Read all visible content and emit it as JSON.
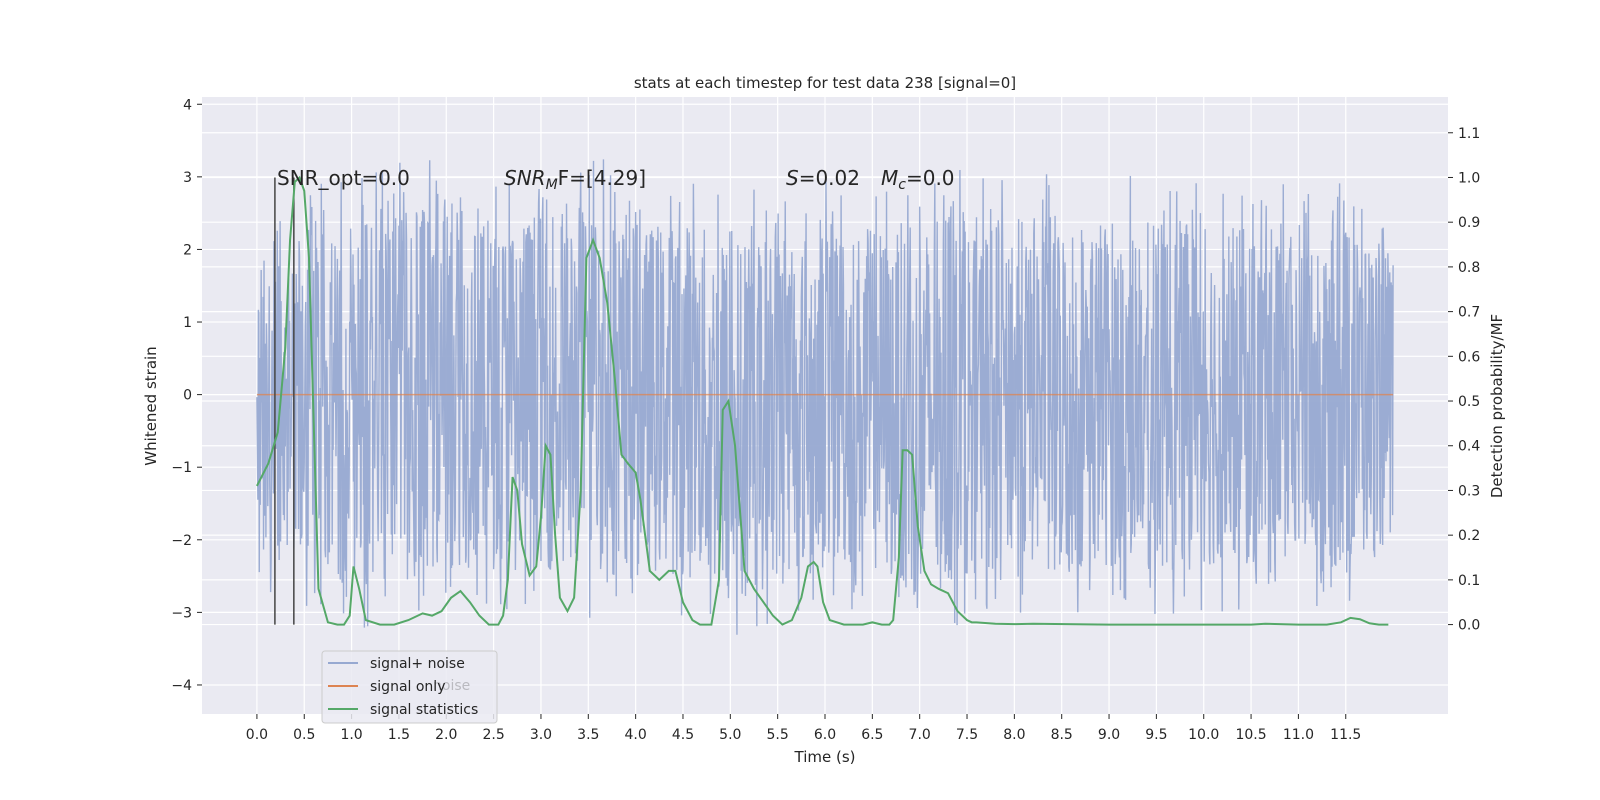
{
  "chart_data": {
    "type": "line",
    "title": "stats at each timestep for test data 238 [signal=0]",
    "xlabel": "Time (s)",
    "ylabel_left": "Whitened strain",
    "ylabel_right": "Detection probability/MF",
    "xlim": [
      -0.58,
      12.58
    ],
    "ylim_left": [
      -4.4,
      4.1
    ],
    "ylim_right": [
      -0.2,
      1.18
    ],
    "x_ticks": [
      "0.0",
      "0.5",
      "1.0",
      "1.5",
      "2.0",
      "2.5",
      "3.0",
      "3.5",
      "4.0",
      "4.5",
      "5.0",
      "5.5",
      "6.0",
      "6.5",
      "7.0",
      "7.5",
      "8.0",
      "8.5",
      "9.0",
      "9.5",
      "10.0",
      "10.5",
      "11.0",
      "11.5"
    ],
    "y_ticks_left": [
      "-4",
      "-3",
      "-2",
      "-1",
      "0",
      "1",
      "2",
      "3",
      "4"
    ],
    "y_ticks_right": [
      "0.0",
      "0.1",
      "0.2",
      "0.3",
      "0.4",
      "0.5",
      "0.6",
      "0.7",
      "0.8",
      "0.9",
      "1.0",
      "1.1"
    ],
    "grid": true,
    "legend_position": "lower-left",
    "series": [
      {
        "name": "signal+ noise",
        "color": "#97a9d1",
        "x_range": [
          0.0,
          12.0
        ],
        "baseline_band": [
          -0.3,
          1.0
        ],
        "envelope": {
          "x": [
            0.0,
            0.5,
            1.0,
            1.5,
            2.0,
            2.5,
            3.0,
            3.5,
            4.0,
            4.5,
            5.0,
            5.5,
            6.0,
            6.5,
            7.0,
            7.5,
            8.0,
            8.5,
            9.0,
            9.5,
            10.0,
            10.5,
            11.0,
            11.5,
            12.0
          ],
          "upper": [
            2.2,
            2.9,
            3.0,
            3.5,
            3.1,
            2.9,
            3.4,
            3.4,
            3.0,
            3.0,
            2.9,
            2.8,
            3.0,
            2.9,
            3.1,
            3.1,
            3.0,
            3.2,
            3.1,
            3.0,
            3.0,
            2.9,
            3.0,
            3.0,
            2.5
          ],
          "lower": [
            -2.7,
            -3.0,
            -3.3,
            -3.0,
            -3.0,
            -3.0,
            -3.0,
            -3.2,
            -3.1,
            -3.1,
            -3.5,
            -3.1,
            -3.1,
            -3.0,
            -3.8,
            -3.1,
            -3.0,
            -3.1,
            -3.0,
            -3.1,
            -3.0,
            -3.0,
            -3.0,
            -3.1,
            -2.6
          ]
        }
      },
      {
        "name": "signal only",
        "color": "#dd8452",
        "x": [
          0.0,
          12.0
        ],
        "y": [
          0.0,
          0.0
        ]
      },
      {
        "name": "signal statistics",
        "color": "#55a868",
        "x": [
          0.0,
          0.12,
          0.22,
          0.3,
          0.35,
          0.4,
          0.45,
          0.5,
          0.55,
          0.6,
          0.65,
          0.75,
          0.85,
          0.92,
          0.98,
          1.02,
          1.08,
          1.15,
          1.3,
          1.45,
          1.6,
          1.75,
          1.85,
          1.95,
          2.05,
          2.15,
          2.25,
          2.35,
          2.45,
          2.55,
          2.6,
          2.65,
          2.7,
          2.75,
          2.8,
          2.88,
          2.95,
          3.0,
          3.05,
          3.1,
          3.15,
          3.2,
          3.28,
          3.35,
          3.42,
          3.48,
          3.55,
          3.62,
          3.7,
          3.78,
          3.85,
          3.92,
          4.0,
          4.05,
          4.1,
          4.15,
          4.2,
          4.25,
          4.35,
          4.42,
          4.5,
          4.6,
          4.68,
          4.75,
          4.8,
          4.88,
          4.92,
          4.98,
          5.05,
          5.15,
          5.25,
          5.35,
          5.45,
          5.55,
          5.65,
          5.75,
          5.82,
          5.88,
          5.92,
          5.98,
          6.05,
          6.2,
          6.4,
          6.5,
          6.6,
          6.68,
          6.72,
          6.78,
          6.82,
          6.87,
          6.92,
          6.98,
          7.05,
          7.12,
          7.2,
          7.3,
          7.4,
          7.5,
          7.55,
          7.6,
          7.8,
          8.0,
          8.2,
          9.0,
          10.0,
          10.5,
          10.65,
          10.8,
          11.0,
          11.3,
          11.45,
          11.55,
          11.65,
          11.75,
          11.85,
          11.95
        ],
        "y": [
          0.31,
          0.36,
          0.43,
          0.62,
          0.86,
          0.99,
          1.0,
          0.97,
          0.82,
          0.45,
          0.08,
          0.005,
          0.0,
          0.0,
          0.02,
          0.13,
          0.08,
          0.01,
          0.0,
          0.0,
          0.01,
          0.025,
          0.02,
          0.03,
          0.06,
          0.075,
          0.05,
          0.02,
          0.0,
          0.0,
          0.02,
          0.1,
          0.33,
          0.3,
          0.18,
          0.11,
          0.13,
          0.24,
          0.4,
          0.38,
          0.2,
          0.06,
          0.03,
          0.06,
          0.3,
          0.82,
          0.86,
          0.82,
          0.72,
          0.55,
          0.38,
          0.36,
          0.34,
          0.28,
          0.2,
          0.12,
          0.11,
          0.1,
          0.12,
          0.12,
          0.05,
          0.01,
          0.0,
          0.0,
          0.0,
          0.1,
          0.48,
          0.5,
          0.4,
          0.12,
          0.08,
          0.05,
          0.02,
          0.0,
          0.01,
          0.06,
          0.13,
          0.14,
          0.13,
          0.05,
          0.01,
          0.0,
          0.0,
          0.005,
          0.0,
          0.0,
          0.01,
          0.15,
          0.39,
          0.39,
          0.38,
          0.22,
          0.12,
          0.09,
          0.08,
          0.07,
          0.03,
          0.01,
          0.005,
          0.005,
          0.002,
          0.001,
          0.002,
          0.0,
          0.0,
          0.0,
          0.002,
          0.001,
          0.0,
          0.0,
          0.005,
          0.015,
          0.012,
          0.003,
          0.0,
          0.0
        ]
      }
    ],
    "vlines": [
      {
        "x": 0.19,
        "color": "#444444"
      },
      {
        "x": 0.39,
        "color": "#444444"
      }
    ],
    "annotations": {
      "snr_opt": "SNR_opt=0.0",
      "snr_mf_symbol": "SNR",
      "snr_mf_sub": "M",
      "snr_mf_rest": "F=[4.29]",
      "s_symbol": "S",
      "s_value": "=0.02",
      "mc_symbol": "M",
      "mc_sub": "c",
      "mc_value": "=0.0"
    },
    "legend": {
      "items": [
        "signal+ noise",
        "signal only",
        "signal statistics"
      ],
      "ghost_text": "noise"
    }
  }
}
